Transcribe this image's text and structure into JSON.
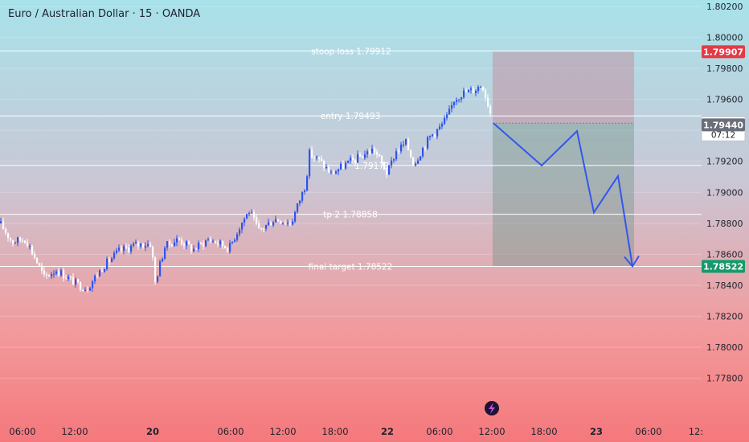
{
  "chart_data": {
    "type": "candlestick",
    "title": "Euro / Australian Dollar · 15 · OANDA",
    "ylim": [
      1.777,
      1.8022
    ],
    "y_ticks": [
      "1.80200",
      "1.80000",
      "1.79800",
      "1.79600",
      "1.79400",
      "1.79200",
      "1.79000",
      "1.78800",
      "1.78600",
      "1.78400",
      "1.78200",
      "1.78000",
      "1.77800"
    ],
    "x_ticks": [
      "06:00",
      "12:00",
      "20",
      "06:00",
      "12:00",
      "18:00",
      "22",
      "06:00",
      "12:00",
      "18:00",
      "23",
      "06:00",
      "12:"
    ],
    "levels": [
      {
        "name": "stop-loss",
        "label": "stoop loss 1.79912",
        "value": 1.79912
      },
      {
        "name": "entry",
        "label": "entry 1.79493",
        "value": 1.79493
      },
      {
        "name": "tp1",
        "label": "1.79173",
        "value": 1.79173
      },
      {
        "name": "tp2",
        "label": "tp 2   1.78858",
        "value": 1.78858
      },
      {
        "name": "final-target",
        "label": "final target   1.78522",
        "value": 1.78522
      }
    ],
    "price_tags": {
      "stop": "1.79907",
      "current": "1.79446",
      "countdown": "07:12",
      "bid": "1.79440",
      "target": "1.78522"
    },
    "trade_zone": {
      "entry": 1.79446,
      "stop": 1.79907,
      "target": 1.78522
    },
    "projection_path": [
      1.79446,
      1.79173,
      1.79395,
      1.7887,
      1.79105,
      1.78522
    ],
    "anchors": [
      [
        0,
        1.788
      ],
      [
        15,
        1.7868
      ],
      [
        32,
        1.787
      ],
      [
        45,
        1.7856
      ],
      [
        55,
        1.7845
      ],
      [
        70,
        1.785
      ],
      [
        84,
        1.7845
      ],
      [
        98,
        1.784
      ],
      [
        108,
        1.7838
      ],
      [
        128,
        1.7852
      ],
      [
        148,
        1.7862
      ],
      [
        168,
        1.7866
      ],
      [
        188,
        1.7867
      ],
      [
        193,
        1.7842
      ],
      [
        205,
        1.7865
      ],
      [
        222,
        1.787
      ],
      [
        240,
        1.7863
      ],
      [
        260,
        1.787
      ],
      [
        285,
        1.7864
      ],
      [
        300,
        1.788
      ],
      [
        310,
        1.7888
      ],
      [
        322,
        1.7875
      ],
      [
        342,
        1.7883
      ],
      [
        362,
        1.788
      ],
      [
        380,
        1.7905
      ],
      [
        385,
        1.7925
      ],
      [
        398,
        1.792
      ],
      [
        412,
        1.7912
      ],
      [
        430,
        1.7918
      ],
      [
        445,
        1.7922
      ],
      [
        465,
        1.7928
      ],
      [
        482,
        1.7912
      ],
      [
        492,
        1.7926
      ],
      [
        505,
        1.7932
      ],
      [
        515,
        1.7918
      ],
      [
        522,
        1.7925
      ],
      [
        535,
        1.7936
      ],
      [
        548,
        1.7942
      ],
      [
        558,
        1.795
      ],
      [
        565,
        1.796
      ],
      [
        575,
        1.7964
      ],
      [
        590,
        1.7966
      ],
      [
        600,
        1.797
      ],
      [
        612,
        1.7948
      ]
    ]
  }
}
